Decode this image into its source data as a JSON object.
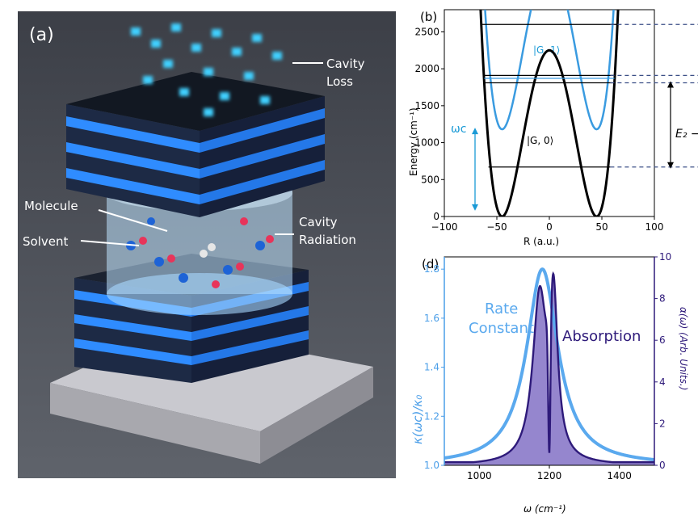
{
  "panel_a": {
    "label": "(a)",
    "annotations": {
      "cavity_loss": [
        "Cavity",
        "Loss"
      ],
      "molecule": "Molecule",
      "cavity_radiation": [
        "Cavity",
        "Radiation"
      ],
      "solvent": "Solvent"
    },
    "colors": {
      "background": "#4a4e57",
      "mirror_blue": "#2e8bff",
      "photon": "#3fd0ff",
      "molecule_red": "#e8345a",
      "molecule_blue": "#1e63d6"
    }
  },
  "chart_data": [
    {
      "panel_label": "(b)",
      "type": "line",
      "title": "",
      "xlabel": "R (a.u.)",
      "ylabel": "Energy (cm⁻¹)",
      "xlim": [
        -100,
        100
      ],
      "ylim": [
        0,
        2800
      ],
      "xticks": [
        -100,
        -50,
        0,
        50,
        100
      ],
      "yticks": [
        0,
        500,
        1000,
        1500,
        2000,
        2500
      ],
      "xtick_labels": [
        "−100",
        "−50",
        "0",
        "50",
        "100"
      ],
      "ytick_labels": [
        "0",
        "500",
        "1000",
        "1500",
        "2000",
        "2500"
      ],
      "series": [
        {
          "name": "|G, 0⟩",
          "color": "#000000",
          "barrier_height": 2250,
          "well_positions": [
            -45,
            45
          ],
          "well_minimum": 0,
          "offset": 0
        },
        {
          "name": "|G, 1⟩",
          "color": "#3a9be0",
          "barrier_height": 2250,
          "well_positions": [
            -45,
            45
          ],
          "well_minimum": 0,
          "offset": 1180
        }
      ],
      "vibrational_levels": [
        {
          "energy": 670,
          "x_range": [
            -58,
            58
          ],
          "color": "#000000"
        },
        {
          "energy": 1810,
          "x_range": [
            -62,
            62
          ],
          "color": "#000000"
        },
        {
          "energy": 1870,
          "x_range": [
            -62,
            62
          ],
          "color": "#3a9be0"
        },
        {
          "energy": 1910,
          "x_range": [
            -62,
            62
          ],
          "color": "#000000"
        },
        {
          "energy": 2600,
          "x_range": [
            -65,
            65
          ],
          "color": "#000000"
        }
      ],
      "annotations": {
        "omega_c": "ωc",
        "omega_c_arrow": [
          100,
          1180
        ],
        "energy_gap_label": "E₂ −",
        "energy_gap_arrow": [
          670,
          1810
        ]
      }
    },
    {
      "panel_label": "(d)",
      "type": "line",
      "title": "",
      "xlabel": "ω (cm⁻¹)",
      "ylabel_left": "κ(ωc)/κ₀",
      "ylabel_right": "α(ω) (Arb. Units.)",
      "xlim": [
        900,
        1500
      ],
      "ylim_left": [
        1.0,
        1.85
      ],
      "ylim_right": [
        0,
        10
      ],
      "xticks": [
        1000,
        1200,
        1400
      ],
      "yticks_left": [
        1.0,
        1.2,
        1.4,
        1.6,
        1.8
      ],
      "yticks_right": [
        0,
        2,
        4,
        6,
        8,
        10
      ],
      "series": [
        {
          "name": "Rate Constant",
          "axis": "left",
          "color": "#5aa9ee",
          "peak_x": 1180,
          "peak_y": 1.8,
          "half_width": 55,
          "baseline": 1.0
        },
        {
          "name": "Absorption",
          "axis": "right",
          "color": "#2e1a7a",
          "fill": "#8a79c9",
          "peaks": [
            {
              "x": 1172,
              "height": 7.8,
              "width": 24
            },
            {
              "x": 1212,
              "height": 7.1,
              "width": 14
            }
          ]
        }
      ],
      "series_labels": {
        "rate": [
          "Rate",
          "Constant"
        ],
        "absorption": "Absorption"
      }
    }
  ]
}
